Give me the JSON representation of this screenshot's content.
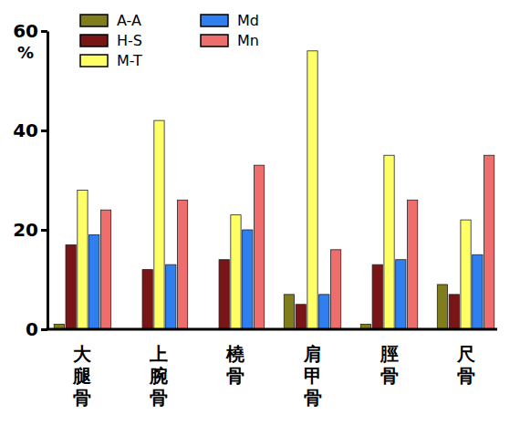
{
  "chart_data": {
    "type": "bar",
    "y_label": "%",
    "categories": [
      "大腿骨",
      "上腕骨",
      "橈骨",
      "肩甲骨",
      "脛骨",
      "尺骨"
    ],
    "series": [
      {
        "name": "A-A",
        "color": "#7f7d1c",
        "values": [
          1,
          0,
          0,
          7,
          1,
          9
        ]
      },
      {
        "name": "H-S",
        "color": "#7a1517",
        "values": [
          17,
          12,
          14,
          5,
          13,
          7
        ]
      },
      {
        "name": "M-T",
        "color": "#ffff66",
        "values": [
          28,
          42,
          23,
          56,
          35,
          22
        ]
      },
      {
        "name": "Md",
        "color": "#2f7ff0",
        "values": [
          19,
          13,
          20,
          7,
          14,
          15
        ]
      },
      {
        "name": "Mn",
        "color": "#ee6e6e",
        "values": [
          24,
          26,
          33,
          16,
          26,
          35
        ]
      }
    ],
    "ylim": [
      0,
      60
    ],
    "yticks": [
      0,
      20,
      40,
      60
    ],
    "legend": "upper left",
    "grid": false
  }
}
